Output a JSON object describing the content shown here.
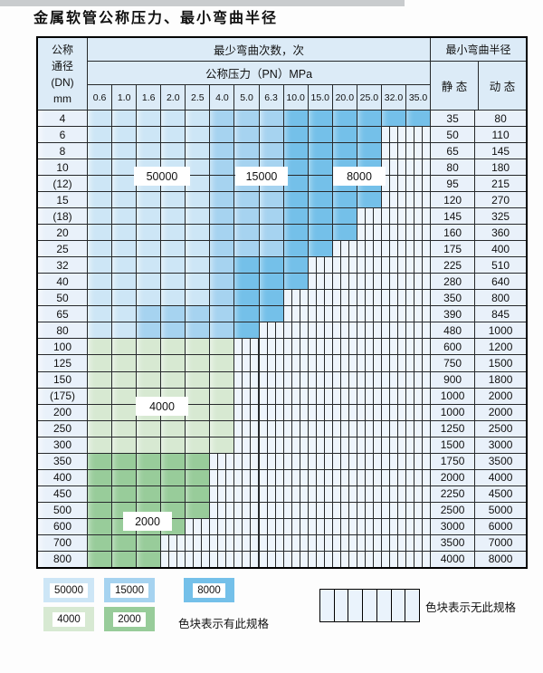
{
  "page": {
    "title_text": "金属软管公称压力、最小弯曲半径"
  },
  "table": {
    "dn_header_lines": [
      "公称",
      "通径",
      "(DN)",
      "mm"
    ],
    "cycles_header": "最少弯曲次数，次",
    "pressure_header": "公称压力（PN）MPa",
    "pressure_values": [
      "0.6",
      "1.0",
      "1.6",
      "2.0",
      "2.5",
      "4.0",
      "5.0",
      "6.3",
      "10.0",
      "15.0",
      "20.0",
      "25.0",
      "32.0",
      "35.0"
    ],
    "radius_header": "最小弯曲半径",
    "static_label": "静 态",
    "dynamic_label": "动 态",
    "overlay_labels": {
      "l50000": "50000",
      "l15000": "15000",
      "l8000": "8000",
      "l4000": "4000",
      "l2000": "2000"
    },
    "rows": [
      {
        "dn": "4",
        "zones": [
          [
            "50000",
            5
          ],
          [
            "15000",
            3
          ],
          [
            "8000",
            6
          ]
        ],
        "static": "35",
        "dynamic": "80"
      },
      {
        "dn": "6",
        "zones": [
          [
            "50000",
            5
          ],
          [
            "15000",
            3
          ],
          [
            "8000",
            4
          ],
          [
            "none",
            2
          ]
        ],
        "static": "50",
        "dynamic": "110"
      },
      {
        "dn": "8",
        "zones": [
          [
            "50000",
            5
          ],
          [
            "15000",
            3
          ],
          [
            "8000",
            4
          ],
          [
            "none",
            2
          ]
        ],
        "static": "65",
        "dynamic": "145"
      },
      {
        "dn": "10",
        "zones": [
          [
            "50000",
            5
          ],
          [
            "15000",
            3
          ],
          [
            "8000",
            4
          ],
          [
            "none",
            2
          ]
        ],
        "static": "80",
        "dynamic": "180"
      },
      {
        "dn": "(12)",
        "zones": [
          [
            "50000",
            5
          ],
          [
            "15000",
            3
          ],
          [
            "8000",
            4
          ],
          [
            "none",
            2
          ]
        ],
        "static": "95",
        "dynamic": "215"
      },
      {
        "dn": "15",
        "zones": [
          [
            "50000",
            5
          ],
          [
            "15000",
            3
          ],
          [
            "8000",
            4
          ],
          [
            "none",
            2
          ]
        ],
        "static": "120",
        "dynamic": "270"
      },
      {
        "dn": "(18)",
        "zones": [
          [
            "50000",
            5
          ],
          [
            "15000",
            3
          ],
          [
            "8000",
            3
          ],
          [
            "none",
            3
          ]
        ],
        "static": "145",
        "dynamic": "325"
      },
      {
        "dn": "20",
        "zones": [
          [
            "50000",
            5
          ],
          [
            "15000",
            3
          ],
          [
            "8000",
            3
          ],
          [
            "none",
            3
          ]
        ],
        "static": "160",
        "dynamic": "360"
      },
      {
        "dn": "25",
        "zones": [
          [
            "50000",
            5
          ],
          [
            "15000",
            3
          ],
          [
            "8000",
            2
          ],
          [
            "none",
            4
          ]
        ],
        "static": "175",
        "dynamic": "400"
      },
      {
        "dn": "32",
        "zones": [
          [
            "50000",
            5
          ],
          [
            "15000",
            1
          ],
          [
            "8000",
            3
          ],
          [
            "none",
            5
          ]
        ],
        "static": "225",
        "dynamic": "510"
      },
      {
        "dn": "40",
        "zones": [
          [
            "50000",
            5
          ],
          [
            "15000",
            1
          ],
          [
            "8000",
            3
          ],
          [
            "none",
            5
          ]
        ],
        "static": "280",
        "dynamic": "640"
      },
      {
        "dn": "50",
        "zones": [
          [
            "50000",
            5
          ],
          [
            "15000",
            1
          ],
          [
            "8000",
            2
          ],
          [
            "none",
            6
          ]
        ],
        "static": "350",
        "dynamic": "800"
      },
      {
        "dn": "65",
        "zones": [
          [
            "50000",
            2
          ],
          [
            "15000",
            4
          ],
          [
            "8000",
            2
          ],
          [
            "none",
            6
          ]
        ],
        "static": "390",
        "dynamic": "845"
      },
      {
        "dn": "80",
        "zones": [
          [
            "50000",
            2
          ],
          [
            "15000",
            4
          ],
          [
            "8000",
            1
          ],
          [
            "none",
            7
          ]
        ],
        "static": "480",
        "dynamic": "1000"
      },
      {
        "dn": "100",
        "zones": [
          [
            "4000",
            6
          ],
          [
            "none",
            8
          ]
        ],
        "static": "600",
        "dynamic": "1200"
      },
      {
        "dn": "125",
        "zones": [
          [
            "4000",
            6
          ],
          [
            "none",
            8
          ]
        ],
        "static": "750",
        "dynamic": "1500"
      },
      {
        "dn": "150",
        "zones": [
          [
            "4000",
            6
          ],
          [
            "none",
            8
          ]
        ],
        "static": "900",
        "dynamic": "1800"
      },
      {
        "dn": "(175)",
        "zones": [
          [
            "4000",
            6
          ],
          [
            "none",
            8
          ]
        ],
        "static": "1000",
        "dynamic": "2000"
      },
      {
        "dn": "200",
        "zones": [
          [
            "4000",
            6
          ],
          [
            "none",
            8
          ]
        ],
        "static": "1000",
        "dynamic": "2000"
      },
      {
        "dn": "250",
        "zones": [
          [
            "4000",
            6
          ],
          [
            "none",
            8
          ]
        ],
        "static": "1250",
        "dynamic": "2500"
      },
      {
        "dn": "300",
        "zones": [
          [
            "4000",
            6
          ],
          [
            "none",
            8
          ]
        ],
        "static": "1500",
        "dynamic": "3000"
      },
      {
        "dn": "350",
        "zones": [
          [
            "2000",
            5
          ],
          [
            "none",
            9
          ]
        ],
        "static": "1750",
        "dynamic": "3500"
      },
      {
        "dn": "400",
        "zones": [
          [
            "2000",
            5
          ],
          [
            "none",
            9
          ]
        ],
        "static": "2000",
        "dynamic": "4000"
      },
      {
        "dn": "450",
        "zones": [
          [
            "2000",
            5
          ],
          [
            "none",
            9
          ]
        ],
        "static": "2250",
        "dynamic": "4500"
      },
      {
        "dn": "500",
        "zones": [
          [
            "2000",
            5
          ],
          [
            "none",
            9
          ]
        ],
        "static": "2500",
        "dynamic": "5000"
      },
      {
        "dn": "600",
        "zones": [
          [
            "2000",
            4
          ],
          [
            "none",
            10
          ]
        ],
        "static": "3000",
        "dynamic": "6000"
      },
      {
        "dn": "700",
        "zones": [
          [
            "2000",
            3
          ],
          [
            "none",
            11
          ]
        ],
        "static": "3500",
        "dynamic": "7000"
      },
      {
        "dn": "800",
        "zones": [
          [
            "2000",
            3
          ],
          [
            "none",
            11
          ]
        ],
        "static": "4000",
        "dynamic": "8000"
      }
    ]
  },
  "legend": {
    "items": [
      {
        "value": "50000",
        "color": "#cde6f6"
      },
      {
        "value": "15000",
        "color": "#a6d3f0"
      },
      {
        "value": "8000",
        "color": "#74c0e9"
      },
      {
        "value": "4000",
        "color": "#d7e9d2"
      },
      {
        "value": "2000",
        "color": "#98cc9a"
      }
    ],
    "has_spec_text": "色块表示有此规格",
    "no_spec_text": "色块表示无此规格"
  },
  "colors": {
    "zone_50000": "#cde6f6",
    "zone_15000": "#a6d3f0",
    "zone_8000": "#74c0e9",
    "zone_4000": "#d7e9d2",
    "zone_2000": "#98cc9a",
    "no_spec_bg": "#eef5fc",
    "grid_line": "#26292b",
    "header_bg": "#dcebf7",
    "label_col_bg": "#e9f1fa"
  }
}
